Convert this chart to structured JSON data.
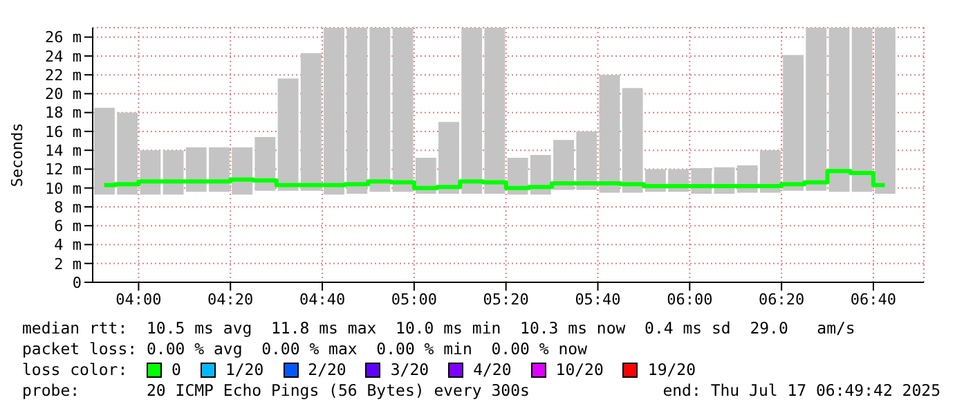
{
  "chart_data": {
    "type": "bar",
    "ylabel": "Seconds",
    "legend_title": "loss color:",
    "legend": "bottom",
    "grid": true,
    "x": [
      3.875,
      3.9583,
      4.0417,
      4.125,
      4.2083,
      4.2917,
      4.375,
      4.4583,
      4.5417,
      4.625,
      4.7083,
      4.7917,
      4.875,
      4.9583,
      5.0417,
      5.125,
      5.2083,
      5.2917,
      5.375,
      5.4583,
      5.5417,
      5.625,
      5.7083,
      5.7917,
      5.875,
      5.9583,
      6.0417,
      6.125,
      6.2083,
      6.2917,
      6.375,
      6.4583,
      6.5417,
      6.625,
      6.7083
    ],
    "xlim": [
      3.8333,
      6.85
    ],
    "xticks": [
      {
        "value": 4,
        "label": "04:00"
      },
      {
        "value": 4.3333,
        "label": "04:20"
      },
      {
        "value": 4.6667,
        "label": "04:40"
      },
      {
        "value": 5,
        "label": "05:00"
      },
      {
        "value": 5.3333,
        "label": "05:20"
      },
      {
        "value": 5.6667,
        "label": "05:40"
      },
      {
        "value": 6,
        "label": "06:00"
      },
      {
        "value": 6.3333,
        "label": "06:20"
      },
      {
        "value": 6.6667,
        "label": "06:40"
      }
    ],
    "ylim": [
      0,
      27
    ],
    "yticks": [
      0,
      {
        "value": 2,
        "label": "2 m"
      },
      {
        "value": 4,
        "label": "4 m"
      },
      {
        "value": 6,
        "label": "6 m"
      },
      {
        "value": 8,
        "label": "8 m"
      },
      {
        "value": 10,
        "label": "10 m"
      },
      {
        "value": 12,
        "label": "12 m"
      },
      {
        "value": 14,
        "label": "14 m"
      },
      {
        "value": 16,
        "label": "16 m"
      },
      {
        "value": 18,
        "label": "18 m"
      },
      {
        "value": 20,
        "label": "20 m"
      },
      {
        "value": 22,
        "label": "22 m"
      },
      {
        "value": 24,
        "label": "24 m"
      },
      {
        "value": 26,
        "label": "26 m"
      }
    ],
    "series": [
      {
        "color": "#c4c4c4",
        "base": [
          9.3,
          9.3,
          9.3,
          9.3,
          9.6,
          9.6,
          9.3,
          9.7,
          9.7,
          9.7,
          9.3,
          9.4,
          9.6,
          9.6,
          9.4,
          9.4,
          9.4,
          9.4,
          9.3,
          9.3,
          9.8,
          9.8,
          9.5,
          9.5,
          9.6,
          9.6,
          9.4,
          9.4,
          9.5,
          9.5,
          9.7,
          9.7,
          9.6,
          9.6,
          9.4
        ],
        "values": [
          9.2,
          8.7,
          4.7,
          4.7,
          4.7,
          4.7,
          5.0,
          5.7,
          11.9,
          14.6,
          17.7,
          17.6,
          17.4,
          17.4,
          3.8,
          7.6,
          17.6,
          17.6,
          3.9,
          4.2,
          5.3,
          6.2,
          12.5,
          11.1,
          2.4,
          2.4,
          2.7,
          2.8,
          2.9,
          4.5,
          14.4,
          17.3,
          17.4,
          17.4,
          17.6
        ]
      },
      {
        "type": "step",
        "name": "0",
        "color": "#00ff00",
        "values": [
          10.3,
          10.4,
          10.7,
          10.7,
          10.7,
          10.7,
          10.9,
          10.8,
          10.3,
          10.3,
          10.3,
          10.4,
          10.7,
          10.6,
          10.0,
          10.1,
          10.7,
          10.6,
          10.0,
          10.1,
          10.5,
          10.5,
          10.5,
          10.4,
          10.2,
          10.2,
          10.2,
          10.2,
          10.2,
          10.2,
          10.4,
          10.6,
          11.8,
          11.6,
          10.3
        ]
      },
      {
        "type": "step",
        "name": "1/20",
        "color": "#00b8ff",
        "values": [
          null,
          null,
          null,
          null,
          null,
          null,
          null,
          null,
          null,
          null,
          null,
          null,
          null,
          null,
          null,
          null,
          null,
          null,
          null,
          null,
          null,
          null,
          null,
          null,
          null,
          null,
          null,
          null,
          null,
          null,
          null,
          null,
          null,
          null,
          null
        ]
      },
      {
        "type": "step",
        "name": "2/20",
        "color": "#0059ff",
        "values": [
          null,
          null,
          null,
          null,
          null,
          null,
          null,
          null,
          null,
          null,
          null,
          null,
          null,
          null,
          null,
          null,
          null,
          null,
          null,
          null,
          null,
          null,
          null,
          null,
          null,
          null,
          null,
          null,
          null,
          null,
          null,
          null,
          null,
          null,
          null
        ]
      },
      {
        "type": "step",
        "name": "3/20",
        "color": "#5e00ff",
        "values": [
          null,
          null,
          null,
          null,
          null,
          null,
          null,
          null,
          null,
          null,
          null,
          null,
          null,
          null,
          null,
          null,
          null,
          null,
          null,
          null,
          null,
          null,
          null,
          null,
          null,
          null,
          null,
          null,
          null,
          null,
          null,
          null,
          null,
          null,
          null
        ]
      },
      {
        "type": "step",
        "name": "4/20",
        "color": "#7e00ff",
        "values": [
          null,
          null,
          null,
          null,
          null,
          null,
          null,
          null,
          null,
          null,
          null,
          null,
          null,
          null,
          null,
          null,
          null,
          null,
          null,
          null,
          null,
          null,
          null,
          null,
          null,
          null,
          null,
          null,
          null,
          null,
          null,
          null,
          null,
          null,
          null
        ]
      },
      {
        "type": "step",
        "name": "10/20",
        "color": "#dd00ff",
        "values": [
          null,
          null,
          null,
          null,
          null,
          null,
          null,
          null,
          null,
          null,
          null,
          null,
          null,
          null,
          null,
          null,
          null,
          null,
          null,
          null,
          null,
          null,
          null,
          null,
          null,
          null,
          null,
          null,
          null,
          null,
          null,
          null,
          null,
          null,
          null
        ]
      },
      {
        "type": "step",
        "name": "19/20",
        "color": "#ff0000",
        "values": [
          null,
          null,
          null,
          null,
          null,
          null,
          null,
          null,
          null,
          null,
          null,
          null,
          null,
          null,
          null,
          null,
          null,
          null,
          null,
          null,
          null,
          null,
          null,
          null,
          null,
          null,
          null,
          null,
          null,
          null,
          null,
          null,
          null,
          null,
          null
        ]
      }
    ],
    "annotations": [
      "median rtt:  10.5 ms avg  11.8 ms max  10.0 ms min  10.3 ms now  0.4 ms sd  29.0   am/s",
      "packet loss: 0.00 % avg  0.00 % max  0.00 % min  0.00 % now",
      "probe:       20 ICMP Echo Pings (56 Bytes) every 300s",
      "end: Thu Jul 17 06:49:42 2025"
    ]
  }
}
